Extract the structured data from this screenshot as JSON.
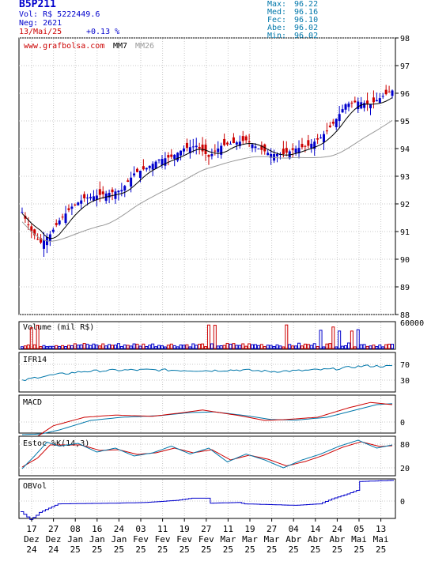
{
  "header": {
    "ticker": "B5P211",
    "volume_label": "Vol:",
    "volume_value": "R$ 5222449.6",
    "neg_label": "Neg:",
    "neg_value": "2621",
    "date": "13/Mai/25",
    "change": "+0.13 %",
    "stats": [
      {
        "label": "Max:",
        "value": "96.22"
      },
      {
        "label": "Med:",
        "value": "96.16"
      },
      {
        "label": "Fec:",
        "value": "96.10"
      },
      {
        "label": "Abe:",
        "value": "96.02"
      },
      {
        "label": "Min:",
        "value": "96.02"
      }
    ]
  },
  "colors": {
    "up": "#0000cc",
    "down": "#cc0000",
    "mm7": "#000000",
    "mm26": "#999999",
    "indicator_blue": "#0077aa",
    "indicator_red": "#cc0000"
  },
  "chart_data": {
    "type": "candlestick",
    "price_panel": {
      "site_label": "www.grafbolsa.com",
      "legend": [
        "MM7",
        "MM26"
      ],
      "y_ticks": [
        88,
        89,
        90,
        91,
        92,
        93,
        94,
        95,
        96,
        97,
        98
      ],
      "ylim": [
        88,
        98
      ]
    },
    "x_labels": [
      {
        "day": "17",
        "month": "Dez",
        "year": "24"
      },
      {
        "day": "27",
        "month": "Dez",
        "year": "24"
      },
      {
        "day": "08",
        "month": "Jan",
        "year": "25"
      },
      {
        "day": "16",
        "month": "Jan",
        "year": "25"
      },
      {
        "day": "24",
        "month": "Jan",
        "year": "25"
      },
      {
        "day": "03",
        "month": "Fev",
        "year": "25"
      },
      {
        "day": "11",
        "month": "Fev",
        "year": "25"
      },
      {
        "day": "19",
        "month": "Fev",
        "year": "25"
      },
      {
        "day": "27",
        "month": "Fev",
        "year": "25"
      },
      {
        "day": "11",
        "month": "Mar",
        "year": "25"
      },
      {
        "day": "19",
        "month": "Mar",
        "year": "25"
      },
      {
        "day": "27",
        "month": "Mar",
        "year": "25"
      },
      {
        "day": "04",
        "month": "Abr",
        "year": "25"
      },
      {
        "day": "14",
        "month": "Abr",
        "year": "25"
      },
      {
        "day": "24",
        "month": "Abr",
        "year": "25"
      },
      {
        "day": "05",
        "month": "Mai",
        "year": "25"
      },
      {
        "day": "13",
        "month": "Mai",
        "year": "25"
      }
    ],
    "close_anchors": [
      [
        0,
        91.7
      ],
      [
        3,
        91.0
      ],
      [
        6,
        90.6
      ],
      [
        9,
        90.9
      ],
      [
        12,
        91.4
      ],
      [
        16,
        91.9
      ],
      [
        20,
        92.2
      ],
      [
        24,
        92.3
      ],
      [
        28,
        92.4
      ],
      [
        32,
        92.5
      ],
      [
        36,
        93.1
      ],
      [
        40,
        93.3
      ],
      [
        44,
        93.6
      ],
      [
        48,
        93.7
      ],
      [
        52,
        94.0
      ],
      [
        56,
        94.1
      ],
      [
        60,
        93.7
      ],
      [
        64,
        94.1
      ],
      [
        68,
        94.2
      ],
      [
        72,
        94.3
      ],
      [
        76,
        94.0
      ],
      [
        80,
        93.8
      ],
      [
        84,
        93.8
      ],
      [
        88,
        94.0
      ],
      [
        92,
        94.1
      ],
      [
        96,
        94.4
      ],
      [
        100,
        94.9
      ],
      [
        104,
        95.6
      ],
      [
        108,
        95.7
      ],
      [
        112,
        95.6
      ],
      [
        116,
        95.9
      ],
      [
        119,
        96.1
      ]
    ],
    "volume_panel": {
      "label": "Volume (mil R$)",
      "y_tick": "60000"
    },
    "ifr_panel": {
      "label": "IFR14",
      "y_ticks": [
        70,
        30
      ],
      "ylim": [
        0,
        100
      ],
      "anchors": [
        [
          0,
          28
        ],
        [
          5,
          38
        ],
        [
          12,
          45
        ],
        [
          20,
          52
        ],
        [
          30,
          55
        ],
        [
          40,
          56
        ],
        [
          50,
          55
        ],
        [
          60,
          54
        ],
        [
          70,
          56
        ],
        [
          80,
          52
        ],
        [
          90,
          54
        ],
        [
          100,
          58
        ],
        [
          110,
          66
        ],
        [
          119,
          65
        ]
      ]
    },
    "macd_panel": {
      "label": "MACD",
      "y_tick": "0",
      "macd_anchors": [
        [
          0,
          -0.55
        ],
        [
          5,
          -0.45
        ],
        [
          10,
          -0.12
        ],
        [
          20,
          0.15
        ],
        [
          30,
          0.22
        ],
        [
          42,
          0.18
        ],
        [
          52,
          0.3
        ],
        [
          58,
          0.38
        ],
        [
          70,
          0.2
        ],
        [
          78,
          0.05
        ],
        [
          85,
          0.08
        ],
        [
          95,
          0.15
        ],
        [
          105,
          0.45
        ],
        [
          112,
          0.62
        ],
        [
          119,
          0.55
        ]
      ],
      "signal_anchors": [
        [
          0,
          -0.4
        ],
        [
          6,
          -0.38
        ],
        [
          12,
          -0.25
        ],
        [
          22,
          0.05
        ],
        [
          32,
          0.15
        ],
        [
          44,
          0.2
        ],
        [
          54,
          0.3
        ],
        [
          62,
          0.32
        ],
        [
          72,
          0.2
        ],
        [
          80,
          0.08
        ],
        [
          88,
          0.06
        ],
        [
          98,
          0.15
        ],
        [
          108,
          0.4
        ],
        [
          114,
          0.55
        ],
        [
          119,
          0.58
        ]
      ]
    },
    "stoch_panel": {
      "label": "Estoc %K(14,3)",
      "y_ticks": [
        80,
        20
      ],
      "ylim": [
        0,
        100
      ],
      "k_anchors": [
        [
          0,
          18
        ],
        [
          4,
          50
        ],
        [
          8,
          85
        ],
        [
          12,
          75
        ],
        [
          18,
          82
        ],
        [
          24,
          60
        ],
        [
          30,
          70
        ],
        [
          36,
          50
        ],
        [
          42,
          58
        ],
        [
          48,
          75
        ],
        [
          54,
          55
        ],
        [
          60,
          70
        ],
        [
          66,
          35
        ],
        [
          72,
          55
        ],
        [
          78,
          40
        ],
        [
          84,
          20
        ],
        [
          90,
          40
        ],
        [
          96,
          55
        ],
        [
          102,
          75
        ],
        [
          108,
          90
        ],
        [
          114,
          70
        ],
        [
          119,
          78
        ]
      ],
      "d_anchors": [
        [
          0,
          22
        ],
        [
          5,
          45
        ],
        [
          9,
          78
        ],
        [
          13,
          78
        ],
        [
          19,
          78
        ],
        [
          25,
          64
        ],
        [
          31,
          66
        ],
        [
          37,
          54
        ],
        [
          43,
          58
        ],
        [
          49,
          70
        ],
        [
          55,
          58
        ],
        [
          61,
          66
        ],
        [
          67,
          40
        ],
        [
          73,
          52
        ],
        [
          79,
          42
        ],
        [
          85,
          25
        ],
        [
          91,
          36
        ],
        [
          97,
          52
        ],
        [
          103,
          72
        ],
        [
          109,
          86
        ],
        [
          115,
          74
        ],
        [
          119,
          76
        ]
      ]
    },
    "obv_panel": {
      "label": "OBVol",
      "y_tick": "0",
      "anchors": [
        [
          0,
          -30
        ],
        [
          3,
          -52
        ],
        [
          5,
          -40
        ],
        [
          6,
          -32
        ],
        [
          12,
          -8
        ],
        [
          30,
          -6
        ],
        [
          40,
          -4
        ],
        [
          50,
          2
        ],
        [
          55,
          8
        ],
        [
          60,
          8
        ],
        [
          61,
          -6
        ],
        [
          70,
          -4
        ],
        [
          72,
          -8
        ],
        [
          80,
          -10
        ],
        [
          88,
          -12
        ],
        [
          96,
          -8
        ],
        [
          100,
          6
        ],
        [
          105,
          20
        ],
        [
          108,
          30
        ],
        [
          109,
          55
        ],
        [
          119,
          58
        ]
      ]
    }
  }
}
